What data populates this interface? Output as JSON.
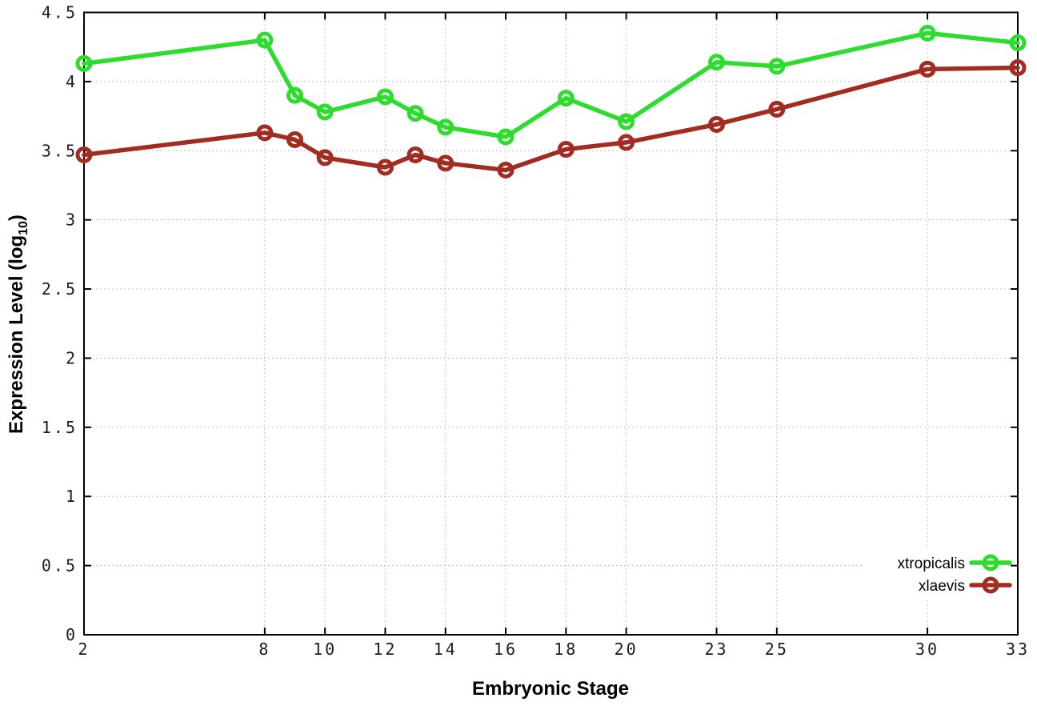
{
  "figure": {
    "background": "#ffffff",
    "axis_color": "#000000",
    "grid_color": "#b4b4b4"
  },
  "chart_data": {
    "type": "line",
    "title": "",
    "xlabel": "Embryonic Stage",
    "ylabel_text": "Expression Level (log10)",
    "ylabel": {
      "pre": "Expression Level (log",
      "sub": "10",
      "post": ")"
    },
    "x": [
      2,
      8,
      9,
      10,
      12,
      13,
      14,
      16,
      18,
      20,
      23,
      25,
      30,
      33
    ],
    "xlim": [
      2,
      33
    ],
    "x_ticks": [
      2,
      8,
      10,
      12,
      14,
      16,
      18,
      20,
      23,
      25,
      30,
      33
    ],
    "ylim": [
      0,
      4.5
    ],
    "y_tick_values": [
      0,
      0.5,
      1,
      1.5,
      2,
      2.5,
      3,
      3.5,
      4,
      4.5
    ],
    "y_tick_labels": [
      "0",
      "0.5",
      "1",
      "1.5",
      "2",
      "2.5",
      "3",
      "3.5",
      "4",
      "4.5"
    ],
    "grid": true,
    "legend_position": "inside-bottom-right",
    "marker": "open-circle",
    "series": [
      {
        "name": "xtropicalis",
        "color": "#2edc2e",
        "values": [
          4.13,
          4.3,
          3.9,
          3.78,
          3.89,
          3.77,
          3.67,
          3.6,
          3.88,
          3.71,
          4.14,
          4.11,
          4.35,
          4.28
        ]
      },
      {
        "name": "xlaevis",
        "color": "#a32c22",
        "values": [
          3.47,
          3.63,
          3.58,
          3.45,
          3.38,
          3.47,
          3.41,
          3.36,
          3.51,
          3.56,
          3.69,
          3.8,
          4.09,
          4.1
        ]
      }
    ]
  }
}
